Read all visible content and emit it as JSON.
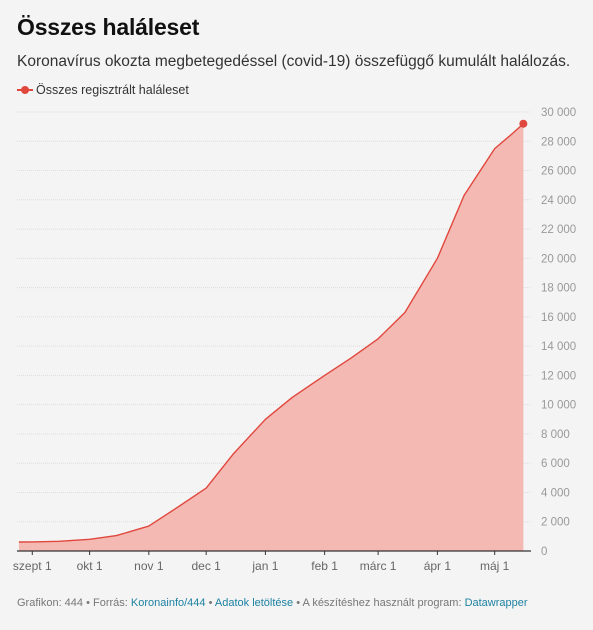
{
  "header": {
    "title": "Összes haláleset",
    "subtitle": "Koronavírus okozta megbetegedéssel (covid-19) összefüggő kumulált halálozás."
  },
  "chart_data": {
    "type": "area",
    "title": "Összes haláleset",
    "subtitle": "Koronavírus okozta megbetegedéssel (covid-19) összefüggő kumulált halálozás.",
    "series": [
      {
        "name": "Összes regisztrált haláleset",
        "color": "#e0473d",
        "fill_color": "#f4b9b3",
        "x": [
          "2020-08-25",
          "2020-09-01",
          "2020-09-15",
          "2020-10-01",
          "2020-10-15",
          "2020-11-01",
          "2020-11-15",
          "2020-12-01",
          "2020-12-15",
          "2021-01-01",
          "2021-01-15",
          "2021-02-01",
          "2021-02-15",
          "2021-03-01",
          "2021-03-15",
          "2021-04-01",
          "2021-04-15",
          "2021-05-01",
          "2021-05-10",
          "2021-05-16"
        ],
        "y": [
          614,
          625,
          660,
          800,
          1050,
          1700,
          2900,
          4300,
          6600,
          9000,
          10500,
          12000,
          13200,
          14500,
          16300,
          20000,
          24300,
          27500,
          28500,
          29200
        ]
      }
    ],
    "x_ticks": [
      "szept 1",
      "okt 1",
      "nov 1",
      "dec 1",
      "jan 1",
      "feb 1",
      "márc 1",
      "ápr 1",
      "máj 1"
    ],
    "x_tick_dates": [
      "2020-09-01",
      "2020-10-01",
      "2020-11-01",
      "2020-12-01",
      "2021-01-01",
      "2021-02-01",
      "2021-03-01",
      "2021-04-01",
      "2021-05-01"
    ],
    "y_ticks": [
      "0",
      "2 000",
      "4 000",
      "6 000",
      "8 000",
      "10 000",
      "12 000",
      "14 000",
      "16 000",
      "18 000",
      "20 000",
      "22 000",
      "24 000",
      "26 000",
      "28 000",
      "30 000"
    ],
    "y_tick_values": [
      0,
      2000,
      4000,
      6000,
      8000,
      10000,
      12000,
      14000,
      16000,
      18000,
      20000,
      22000,
      24000,
      26000,
      28000,
      30000
    ],
    "ylim": [
      0,
      30000
    ],
    "xlim": [
      "2020-08-24",
      "2021-05-20"
    ],
    "grid": true,
    "legend": "top-left",
    "y_axis_side": "right"
  },
  "footer": {
    "prefix": "Grafikon: 444 • Forrás: ",
    "source_link": "Koronainfo/444",
    "sep1": " • ",
    "download_link": "Adatok letöltése",
    "middle": " • A készítéshez használt program: ",
    "tool_link": "Datawrapper"
  }
}
